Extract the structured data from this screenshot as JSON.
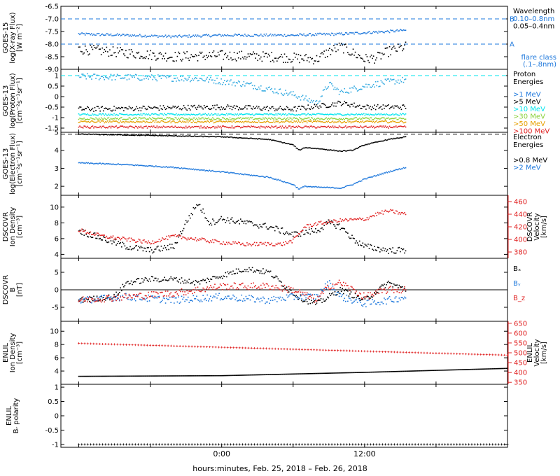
{
  "colors": {
    "black": "#000000",
    "blue": "#1e78dc",
    "cyan": "#00e5ee",
    "green": "#8cd23c",
    "orange": "#e6a000",
    "red": "#e02020",
    "lightblue": "#2fa8e0"
  },
  "x_axis_label": "hours:minutes, Feb. 25, 2018 – Feb. 26, 2018",
  "x_tick_labels": [
    "0:00",
    "12:00"
  ],
  "chart_data": [
    {
      "type": "scatter",
      "ylabel": [
        "GOES-15",
        "log(X-ray Flux)",
        "[W m⁻²]"
      ],
      "ylim": [
        -9.0,
        -6.5
      ],
      "yticks": [
        -6.5,
        -7.0,
        -7.5,
        -8.0,
        -8.5,
        -9.0
      ],
      "hlines": [
        {
          "y": -7.0,
          "style": "dashed",
          "color": "blue",
          "label": "B"
        },
        {
          "y": -8.0,
          "style": "dashed",
          "color": "blue",
          "label": "A"
        }
      ],
      "legend_title": "Wavelength",
      "legend": [
        {
          "text": "0.10–0.8nm",
          "color": "blue"
        },
        {
          "text": "0.05–0.4nm",
          "color": "black"
        }
      ],
      "extra_text": [
        {
          "text": "flare class",
          "color": "blue"
        },
        {
          "text": "(.1–.8nm)",
          "color": "blue"
        }
      ],
      "series": [
        {
          "name": "0.10–0.8nm",
          "color": "blue",
          "noise": 0.05,
          "x": [
            -12,
            -8,
            -4,
            0,
            4,
            6,
            8,
            10,
            12,
            14,
            15.5
          ],
          "y": [
            -7.6,
            -7.65,
            -7.7,
            -7.65,
            -7.65,
            -7.65,
            -7.62,
            -7.6,
            -7.55,
            -7.5,
            -7.45
          ]
        },
        {
          "name": "0.05–0.4nm",
          "color": "black",
          "noise": 0.2,
          "x": [
            -12,
            -8,
            -4,
            0,
            4,
            6,
            8,
            9,
            10,
            12,
            13,
            14,
            15.5
          ],
          "y": [
            -8.2,
            -8.35,
            -8.5,
            -8.45,
            -8.5,
            -8.55,
            -8.6,
            -8.3,
            -8.1,
            -8.6,
            -8.55,
            -8.3,
            -8.1
          ]
        }
      ]
    },
    {
      "type": "scatter",
      "ylabel": [
        "GOES-13",
        "log(Proton Flux)",
        "[cm⁻²s⁻¹sr⁻¹]"
      ],
      "ylim": [
        -1.7,
        1.3
      ],
      "yticks": [
        1.0,
        0.5,
        0.0,
        -0.5,
        -1.0,
        -1.5
      ],
      "hlines": [
        {
          "y": 1.0,
          "style": "dashed",
          "color": "cyan"
        }
      ],
      "legend_title": [
        "Proton",
        "Energies"
      ],
      "legend": [
        {
          "text": ">1 MeV",
          "color": "blue"
        },
        {
          "text": ">5 MeV",
          "color": "black"
        },
        {
          "text": ">10 MeV",
          "color": "cyan"
        },
        {
          "text": ">30 MeV",
          "color": "green"
        },
        {
          "text": ">50 MeV",
          "color": "orange"
        },
        {
          "text": ">100 MeV",
          "color": "red"
        }
      ],
      "series": [
        {
          "name": ">1 MeV",
          "color": "lightblue",
          "noise": 0.15,
          "x": [
            -12,
            -6,
            -2,
            2,
            6,
            8,
            9,
            10,
            12,
            14,
            15.5
          ],
          "y": [
            0.95,
            0.9,
            0.85,
            0.6,
            0.1,
            -0.3,
            0.6,
            0.2,
            0.5,
            0.7,
            0.8
          ]
        },
        {
          "name": ">5 MeV",
          "color": "black",
          "noise": 0.12,
          "x": [
            -12,
            -6,
            0,
            6,
            9,
            10,
            12,
            15.5
          ],
          "y": [
            -0.6,
            -0.55,
            -0.5,
            -0.6,
            -0.4,
            -0.3,
            -0.5,
            -0.5
          ]
        },
        {
          "name": ">10 MeV",
          "color": "cyan",
          "noise": 0.04,
          "x": [
            -12,
            15.5
          ],
          "y": [
            -0.85,
            -0.85
          ]
        },
        {
          "name": ">30 MeV",
          "color": "green",
          "noise": 0.05,
          "x": [
            -12,
            15.5
          ],
          "y": [
            -1.05,
            -1.05
          ]
        },
        {
          "name": ">50 MeV",
          "color": "orange",
          "noise": 0.05,
          "x": [
            -12,
            15.5
          ],
          "y": [
            -1.2,
            -1.2
          ]
        },
        {
          "name": ">100 MeV",
          "color": "red",
          "noise": 0.05,
          "x": [
            -12,
            15.5
          ],
          "y": [
            -1.45,
            -1.45
          ]
        }
      ]
    },
    {
      "type": "line",
      "ylabel": [
        "GOES-13",
        "log(Electron Flux)",
        "[cm⁻²s⁻¹sr⁻¹]"
      ],
      "ylim": [
        1.5,
        5.0
      ],
      "yticks": [
        5,
        4,
        3,
        2
      ],
      "hlines": [
        {
          "y": 4.9,
          "style": "dashed",
          "color": "black"
        }
      ],
      "legend_title": [
        "Electron",
        "Energies"
      ],
      "legend": [
        {
          "text": ">0.8 MeV",
          "color": "black"
        },
        {
          "text": ">2 MeV",
          "color": "blue"
        }
      ],
      "series": [
        {
          "name": ">0.8 MeV",
          "color": "black",
          "noise": 0.02,
          "x": [
            -12,
            -8,
            -4,
            0,
            4,
            6,
            6.5,
            7,
            8,
            10,
            11,
            12,
            14,
            15.5
          ],
          "y": [
            4.9,
            4.85,
            4.8,
            4.75,
            4.6,
            4.3,
            4.0,
            4.15,
            4.1,
            3.95,
            4.0,
            4.3,
            4.6,
            4.75
          ]
        },
        {
          "name": ">2 MeV",
          "color": "blue",
          "noise": 0.03,
          "x": [
            -12,
            -8,
            -4,
            0,
            4,
            6,
            6.5,
            7,
            8,
            10,
            11,
            12,
            14,
            15.5
          ],
          "y": [
            3.3,
            3.2,
            3.05,
            2.8,
            2.5,
            2.1,
            1.85,
            2.0,
            1.95,
            1.9,
            2.1,
            2.4,
            2.8,
            3.05
          ]
        }
      ]
    },
    {
      "type": "scatter",
      "ylabel": [
        "DSCOVR",
        "Ion Density",
        "[cm⁻³]"
      ],
      "ylim": [
        3.5,
        11.5
      ],
      "yticks": [
        10,
        8,
        6,
        4
      ],
      "y2label": [
        "DSCOVR",
        "Velocity",
        "[km/s]"
      ],
      "y2lim": [
        370,
        470
      ],
      "y2ticks": [
        460,
        440,
        420,
        400,
        380
      ],
      "series": [
        {
          "name": "Density",
          "color": "black",
          "noise": 0.4,
          "x": [
            -12,
            -10,
            -8,
            -6,
            -4,
            -3,
            -2,
            -1,
            0,
            2,
            4,
            5,
            6,
            7,
            8,
            9,
            10,
            11,
            12,
            14,
            15.5
          ],
          "y": [
            7,
            6,
            5,
            4.5,
            5,
            8,
            10.5,
            8,
            8.5,
            8,
            7.5,
            7,
            6.5,
            6.8,
            7,
            8,
            7.5,
            6,
            5,
            4.5,
            4.5
          ]
        },
        {
          "name": "Velocity",
          "axis": "y2",
          "color": "red",
          "noise": 3,
          "x": [
            -12,
            -10,
            -8,
            -6,
            -4,
            -2,
            0,
            2,
            4,
            5,
            6,
            7,
            8,
            10,
            12,
            13,
            14,
            15.5
          ],
          "y": [
            415,
            405,
            400,
            395,
            405,
            400,
            395,
            392,
            393,
            392,
            398,
            420,
            425,
            430,
            432,
            440,
            445,
            440
          ]
        }
      ]
    },
    {
      "type": "scatter",
      "ylabel": [
        "DSCOVR",
        "B",
        "[nT]"
      ],
      "ylim": [
        -9,
        9
      ],
      "yticks": [
        5,
        0,
        -5
      ],
      "zero_line": true,
      "legend": [
        {
          "text": "Bₓ",
          "color": "black"
        },
        {
          "text": "Bᵧ",
          "color": "blue"
        },
        {
          "text": "B_z",
          "color": "red"
        }
      ],
      "series": [
        {
          "name": "Bx",
          "color": "black",
          "noise": 0.8,
          "x": [
            -12,
            -9,
            -8,
            -6,
            -4,
            -2,
            0,
            2,
            4,
            5,
            6,
            7,
            8,
            9,
            10,
            12,
            14,
            15.5
          ],
          "y": [
            -3,
            -2,
            2,
            3,
            3,
            2,
            4,
            6,
            5,
            2,
            -1,
            -3,
            -4,
            -2,
            0,
            -3,
            2,
            0
          ]
        },
        {
          "name": "By",
          "color": "blue",
          "noise": 1,
          "x": [
            -12,
            -8,
            -4,
            0,
            4,
            6,
            8,
            9,
            10,
            12,
            14,
            15.5
          ],
          "y": [
            -3,
            -2,
            -3,
            -2,
            -3,
            -2,
            -2,
            2,
            -2,
            -4,
            -3,
            -2
          ]
        },
        {
          "name": "Bz",
          "color": "red",
          "noise": 1,
          "x": [
            -12,
            -8,
            -4,
            0,
            4,
            6,
            8,
            9,
            10,
            12,
            14,
            15.5
          ],
          "y": [
            -3,
            -2,
            -1,
            1,
            1,
            0,
            -3,
            1,
            2,
            -2,
            0,
            0
          ]
        }
      ]
    },
    {
      "type": "line",
      "ylabel": [
        "ENLIL",
        "Ion Density",
        "[cm⁻³]"
      ],
      "ylim": [
        2,
        11.5
      ],
      "yticks": [
        10,
        8,
        6,
        4
      ],
      "y2label": [
        "ENLIL",
        "Velocity",
        "[km/s]"
      ],
      "y2lim": [
        340,
        660
      ],
      "y2ticks": [
        650,
        600,
        550,
        500,
        450,
        400,
        350
      ],
      "series": [
        {
          "name": "Density",
          "color": "black",
          "noise": 0,
          "x": [
            -12,
            0,
            12,
            24
          ],
          "y": [
            3.2,
            3.3,
            3.8,
            4.4
          ]
        },
        {
          "name": "Velocity",
          "axis": "y2",
          "color": "red",
          "marker": "plus",
          "noise": 0,
          "x": [
            -12,
            24
          ],
          "y": [
            548,
            488
          ]
        }
      ]
    },
    {
      "type": "line",
      "ylabel": [
        "ENLIL",
        "Bᵣ polarity"
      ],
      "ylim": [
        -1.1,
        1.1
      ],
      "yticks": [
        1.0,
        0.5,
        0.0,
        -0.5,
        -1.0
      ],
      "series": [
        {
          "name": "polarity",
          "color": "black",
          "marker": "plus",
          "noise": 0,
          "x": [
            -12,
            24
          ],
          "y": [
            -1,
            -1
          ]
        }
      ]
    }
  ]
}
